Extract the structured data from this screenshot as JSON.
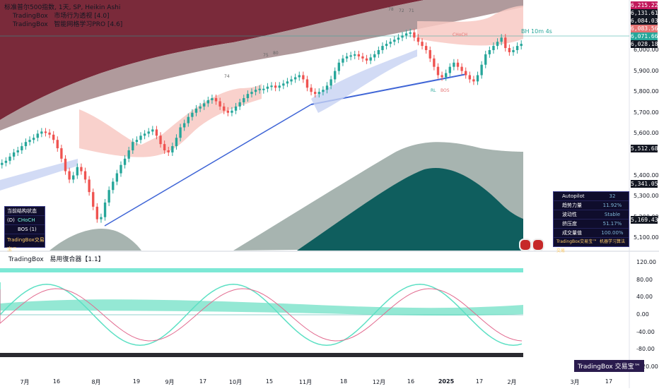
{
  "legend": {
    "line1": "标准普尔500指数, 1天, SP, Heikin Ashi",
    "line2_brand": "TradingBox",
    "line2_name": "市场行为透视 [4.0]",
    "line3_brand": "TradingBox",
    "line3_name": "智能网格学习PRO [4.6]"
  },
  "oscillator": {
    "brand": "TradingBox",
    "name": "易用復合器【1.1】",
    "y_ticks": [
      "120.00",
      "80.00",
      "40.00",
      "0.00",
      "-40.00",
      "-80.00",
      "-120.00"
    ]
  },
  "price_axis": {
    "ticks": [
      "6,000.00",
      "5,900.00",
      "5,800.00",
      "5,700.00",
      "5,600.00",
      "5,400.00",
      "5,300.00",
      "5,200.00",
      "5,100.00"
    ],
    "badges": [
      {
        "label": "6,215.22",
        "color": "#c2185b"
      },
      {
        "label": "6,131.61",
        "color": "#131722"
      },
      {
        "label": "6,084.03",
        "color": "#131722"
      },
      {
        "label": "6,083.56",
        "color": "#e57373"
      },
      {
        "label": "6,071.66",
        "color": "#26a69a"
      },
      {
        "label": "6,028.18",
        "color": "#131722"
      },
      {
        "label": "5,512.68",
        "color": "#131722"
      },
      {
        "label": "5,341.05",
        "color": "#131722"
      },
      {
        "label": "5,169.43",
        "color": "#131722"
      }
    ]
  },
  "x_axis": {
    "ticks": [
      "7月",
      "16",
      "8月",
      "19",
      "9月",
      "17",
      "10月",
      "15",
      "11月",
      "18",
      "12月",
      "16",
      "2025",
      "17",
      "2月",
      "3月",
      "17"
    ]
  },
  "annotations": {
    "bh_label": "BH 10m 4s",
    "choch_box": "CHoCH",
    "mark_rl": "RL",
    "mark_bos": "BOS",
    "peak_labels": [
      "74",
      "75",
      "80",
      "78",
      "72",
      "71"
    ]
  },
  "left_panel": {
    "title": "当前结构状态 (D)",
    "row1": "CHoCH",
    "row2": "BOS (1)",
    "brand": "TradingBox交易宝™"
  },
  "right_panel": {
    "rows": [
      {
        "label": "Autopilot",
        "value": "32"
      },
      {
        "label": "趋势力量",
        "value": "11.92%"
      },
      {
        "label": "波动性",
        "value": "Stable"
      },
      {
        "label": "挤压度",
        "value": "51.17%"
      },
      {
        "label": "成交量值",
        "value": "100.00%"
      }
    ],
    "brand": "TradingBox交易宝™",
    "brand2": "机器学习算法交易"
  },
  "bottom_brand": "TradingBox 交易宝™",
  "chart_data": {
    "type": "candlestick",
    "title": "标准普尔500指数, 1天, SP, Heikin Ashi",
    "ylim": [
      5040,
      6240
    ],
    "ohlc_close": [
      5460,
      5470,
      5490,
      5510,
      5520,
      5540,
      5560,
      5570,
      5580,
      5600,
      5610,
      5605,
      5595,
      5570,
      5530,
      5480,
      5420,
      5380,
      5400,
      5440,
      5420,
      5380,
      5320,
      5250,
      5190,
      5200,
      5270,
      5330,
      5370,
      5410,
      5450,
      5480,
      5520,
      5560,
      5570,
      5590,
      5600,
      5610,
      5620,
      5590,
      5550,
      5520,
      5510,
      5540,
      5580,
      5630,
      5650,
      5680,
      5700,
      5720,
      5730,
      5745,
      5760,
      5770,
      5755,
      5730,
      5710,
      5700,
      5710,
      5730,
      5750,
      5770,
      5790,
      5800,
      5810,
      5815,
      5815,
      5825,
      5830,
      5820,
      5830,
      5840,
      5850,
      5860,
      5870,
      5880,
      5860,
      5820,
      5800,
      5790,
      5800,
      5810,
      5830,
      5860,
      5900,
      5940,
      5960,
      5970,
      5975,
      5980,
      5970,
      5960,
      5950,
      5965,
      5980,
      6000,
      6020,
      6030,
      6040,
      6050,
      6060,
      6070,
      6080,
      6085,
      6060,
      6040,
      6020,
      6000,
      5960,
      5920,
      5880,
      5870,
      5890,
      5920,
      5940,
      5920,
      5900,
      5880,
      5860,
      5850,
      5880,
      5930,
      5980,
      6000,
      6020,
      6040,
      6060,
      6010,
      5990,
      6000,
      6020,
      6030
    ],
    "bands": {
      "upper_cloud": "maroon",
      "lower_cloud": "teal"
    },
    "oscillator_series": [
      {
        "name": "",
        "range": [
          -120,
          120
        ]
      }
    ]
  }
}
